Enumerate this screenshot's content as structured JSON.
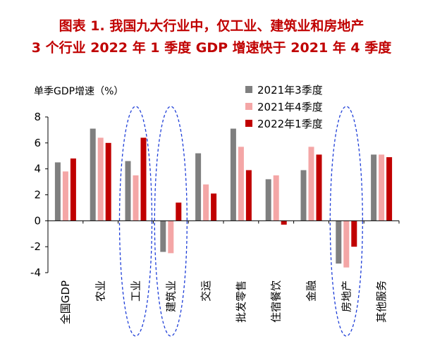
{
  "header": {
    "title_line1": "图表 1.  我国九大行业中，仅工业、建筑业和房地产",
    "title_line2": "3 个行业 2022 年 1 季度 GDP 增速快于 2021 年 4 季度"
  },
  "chart_data": {
    "type": "bar",
    "ylabel": "单季GDP增速（%）",
    "ylim": [
      -4,
      8
    ],
    "yticks": [
      -4,
      -2,
      0,
      2,
      4,
      6,
      8
    ],
    "grid": false,
    "legend_position": "top-right",
    "categories": [
      "全国GDP",
      "农业",
      "工业",
      "建筑业",
      "交运",
      "批发零售",
      "住宿餐饮",
      "金融",
      "房地产",
      "其他服务"
    ],
    "series": [
      {
        "name": "2021年3季度",
        "color": "#7f7f7f",
        "values": [
          4.5,
          7.1,
          4.6,
          -2.4,
          5.2,
          7.1,
          3.2,
          3.9,
          -3.3,
          5.1
        ]
      },
      {
        "name": "2021年4季度",
        "color": "#f4a6a6",
        "values": [
          3.8,
          6.4,
          3.5,
          -2.5,
          2.8,
          5.7,
          3.5,
          5.7,
          -3.6,
          5.1
        ]
      },
      {
        "name": "2022年1季度",
        "color": "#c00000",
        "values": [
          4.8,
          6.0,
          6.4,
          1.4,
          2.1,
          3.9,
          -0.3,
          5.1,
          -2.0,
          4.9
        ]
      }
    ],
    "highlighted_categories": [
      "工业",
      "建筑业",
      "房地产"
    ],
    "highlight_color": "#1f3fd8"
  }
}
